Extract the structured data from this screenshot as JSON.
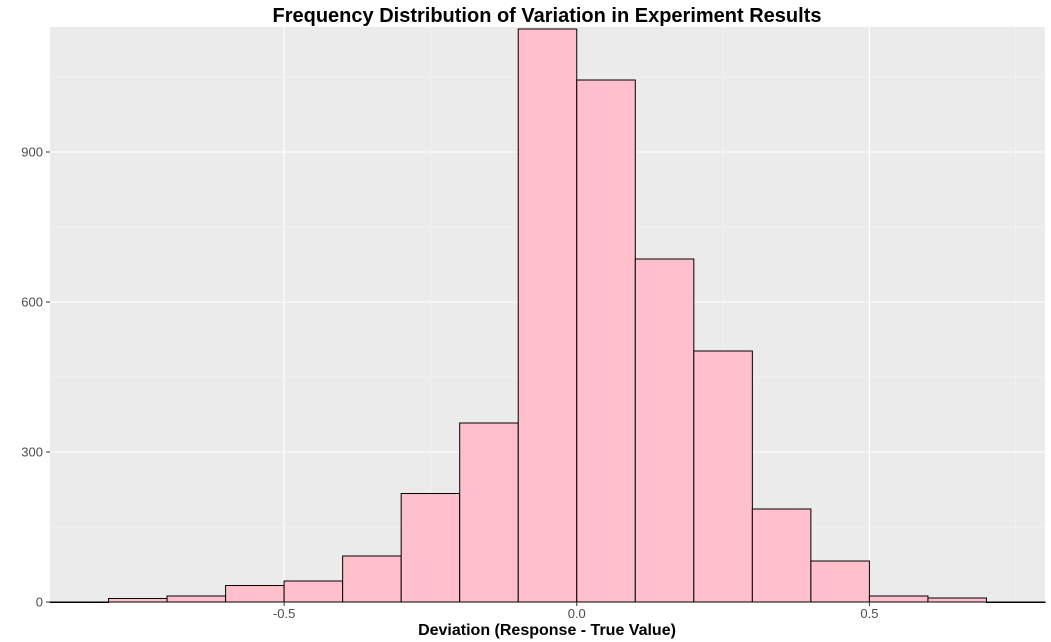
{
  "chart_data": {
    "type": "bar",
    "title": "Frequency Distribution of Variation in Experiment Results",
    "xlabel": "Deviation (Response - True Value)",
    "ylabel": "",
    "xlim": [
      -0.9,
      0.8
    ],
    "ylim": [
      0,
      1150
    ],
    "bin_width": 0.1,
    "bins": [
      {
        "x0": -0.9,
        "x1": -0.8,
        "count": 0
      },
      {
        "x0": -0.8,
        "x1": -0.7,
        "count": 7
      },
      {
        "x0": -0.7,
        "x1": -0.6,
        "count": 12
      },
      {
        "x0": -0.6,
        "x1": -0.5,
        "count": 33
      },
      {
        "x0": -0.5,
        "x1": -0.4,
        "count": 42
      },
      {
        "x0": -0.4,
        "x1": -0.3,
        "count": 92
      },
      {
        "x0": -0.3,
        "x1": -0.2,
        "count": 217
      },
      {
        "x0": -0.2,
        "x1": -0.1,
        "count": 358
      },
      {
        "x0": -0.1,
        "x1": 0.0,
        "count": 1146
      },
      {
        "x0": 0.0,
        "x1": 0.1,
        "count": 1044
      },
      {
        "x0": 0.1,
        "x1": 0.2,
        "count": 686
      },
      {
        "x0": 0.2,
        "x1": 0.3,
        "count": 502
      },
      {
        "x0": 0.3,
        "x1": 0.4,
        "count": 186
      },
      {
        "x0": 0.4,
        "x1": 0.5,
        "count": 82
      },
      {
        "x0": 0.5,
        "x1": 0.6,
        "count": 12
      },
      {
        "x0": 0.6,
        "x1": 0.7,
        "count": 8
      },
      {
        "x0": 0.7,
        "x1": 0.8,
        "count": 0
      }
    ],
    "x_ticks": [
      {
        "value": -0.5,
        "label": "-0.5"
      },
      {
        "value": 0.0,
        "label": "0.0"
      },
      {
        "value": 0.5,
        "label": "0.5"
      }
    ],
    "y_ticks": [
      {
        "value": 0,
        "label": "0"
      },
      {
        "value": 300,
        "label": "300"
      },
      {
        "value": 600,
        "label": "600"
      },
      {
        "value": 900,
        "label": "900"
      }
    ],
    "grid": true,
    "legend": "none",
    "colors": {
      "panel_background": "#ebebeb",
      "grid_major": "#ffffff",
      "grid_minor": "#f5f5f5",
      "bar_fill": "#ffc0cb",
      "bar_stroke": "#000000",
      "tick_text": "#4d4d4d"
    }
  }
}
